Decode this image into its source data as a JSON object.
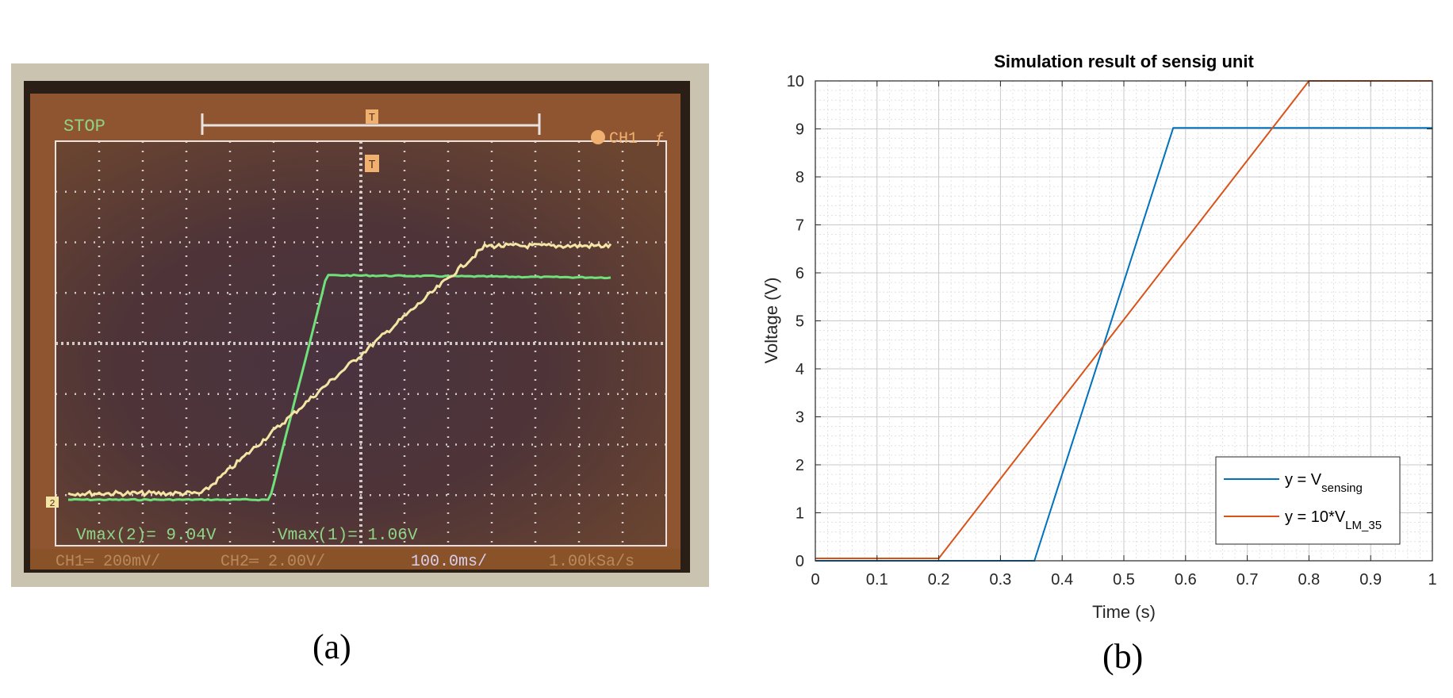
{
  "captions": {
    "a": "(a)",
    "b": "(b)"
  },
  "scope": {
    "stop": "STOP",
    "trigger": "CH1",
    "trigger_marker": "T",
    "ground_marker": "2",
    "vmax2": "Vmax(2)= 9.04V",
    "vmax1": "Vmax(1)= 1.06V",
    "ch1_scale": "CH1═ 200mV/",
    "ch2_scale": "CH2═ 2.00V/",
    "timebase": "100.0ms/",
    "sample_rate": "1.00kSa/s",
    "colors": {
      "ch1": "#f3e6a5",
      "ch2": "#6fe07a",
      "text": "#8fd486",
      "grid": "#e8e3e0"
    }
  },
  "chart_data": {
    "type": "line",
    "title": "Simulation result of sensig unit",
    "xlabel": "Time (s)",
    "ylabel": "Voltage (V)",
    "xlim": [
      0,
      1
    ],
    "ylim": [
      0,
      10
    ],
    "xticks": [
      0,
      0.1,
      0.2,
      0.3,
      0.4,
      0.5,
      0.6,
      0.7,
      0.8,
      0.9,
      1
    ],
    "xtick_labels": [
      "0",
      "0.1",
      "0.2",
      "0.3",
      "0.4",
      "0.5",
      "0.6",
      "0.7",
      "0.8",
      "0.9",
      "1"
    ],
    "yticks": [
      0,
      1,
      2,
      3,
      4,
      5,
      6,
      7,
      8,
      9,
      10
    ],
    "grid": true,
    "minor_grid": true,
    "legend": "bottom-right",
    "series": [
      {
        "label_main": "y = V",
        "label_sub": "sensing",
        "color": "#0072bd",
        "x": [
          0,
          0.355,
          0.58,
          1
        ],
        "y": [
          0,
          0,
          9.02,
          9.02
        ]
      },
      {
        "label_main": "y = 10*V",
        "label_sub": "LM_35",
        "color": "#d95319",
        "x": [
          0,
          0.2,
          0.8,
          1
        ],
        "y": [
          0.05,
          0.05,
          10,
          10
        ]
      }
    ]
  }
}
